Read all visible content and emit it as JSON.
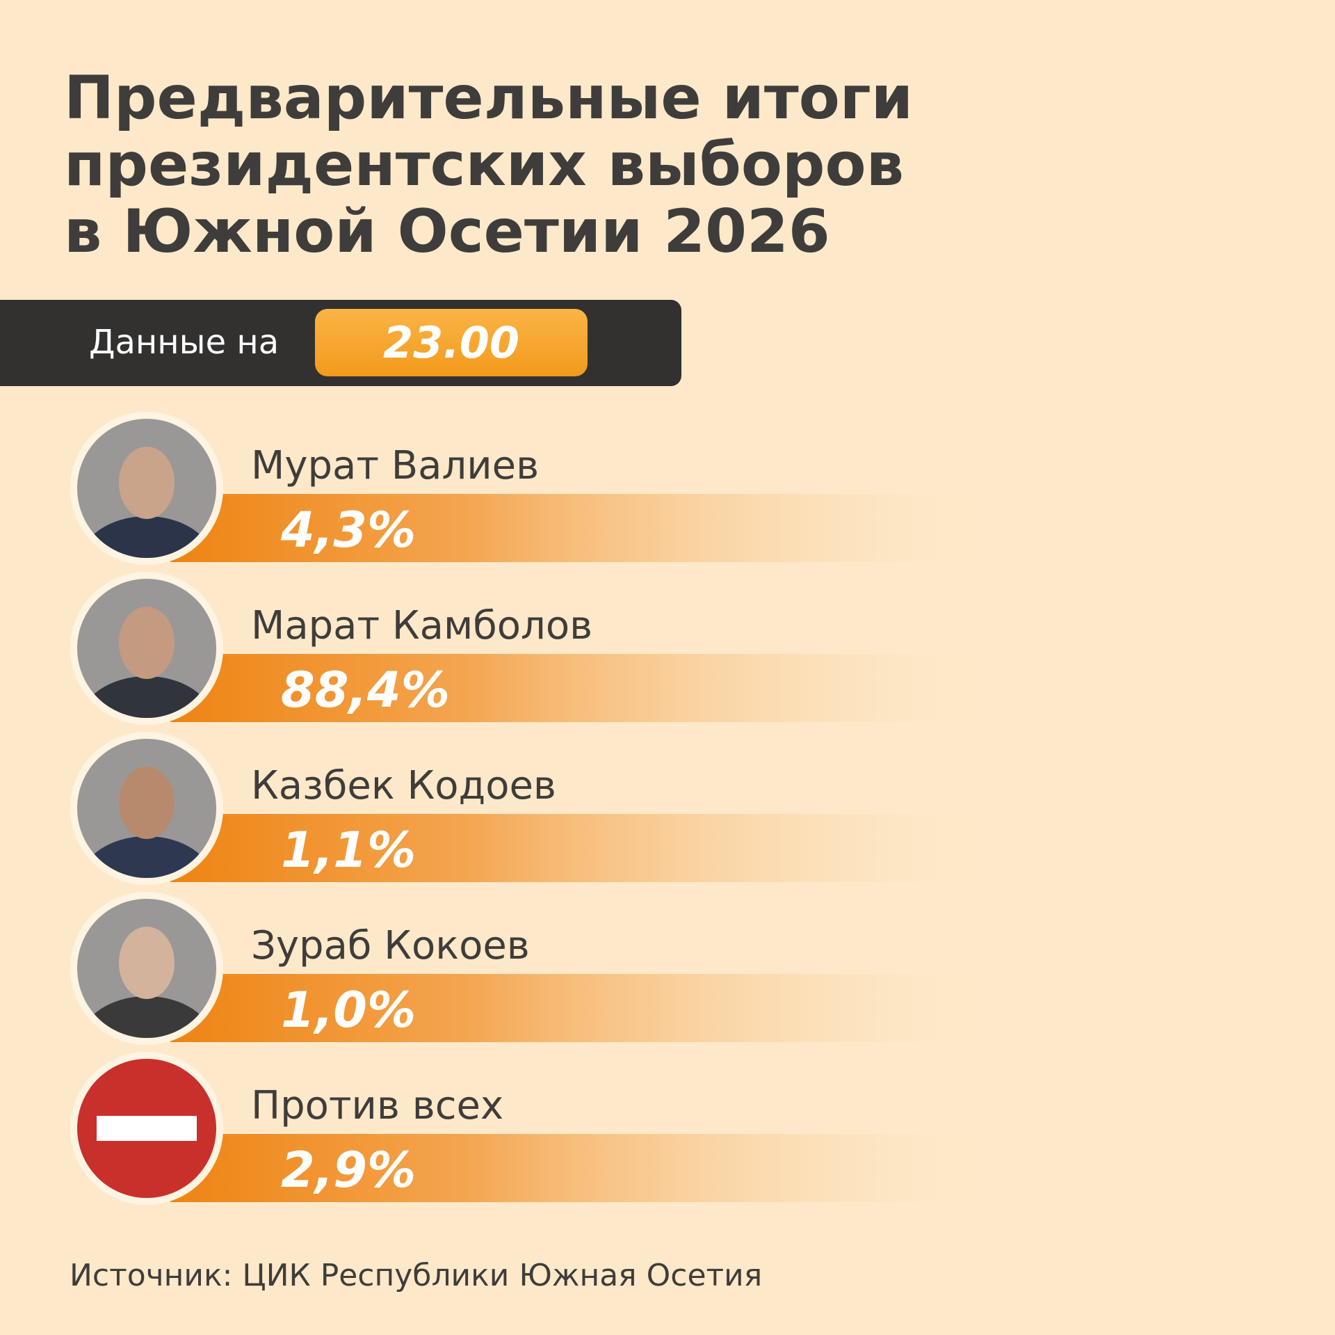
{
  "header": {
    "title_lines": [
      "Предварительные итоги",
      "президентских выборов",
      "в Южной Осетии 2026"
    ]
  },
  "timestamp": {
    "label": "Данные на",
    "time": "23.00"
  },
  "candidates": [
    {
      "name": "Мурат Валиев",
      "result": "4,3%"
    },
    {
      "name": "Марат Камболов",
      "result": "88,4%"
    },
    {
      "name": "Казбек Кодоев",
      "result": "1,1%"
    },
    {
      "name": "Зураб Кокоев",
      "result": "1,0%"
    },
    {
      "name": "Против всех",
      "result": "2,9%"
    }
  ],
  "footer": {
    "source": "Источник: ЦИК Республики Южная Осетия"
  }
}
